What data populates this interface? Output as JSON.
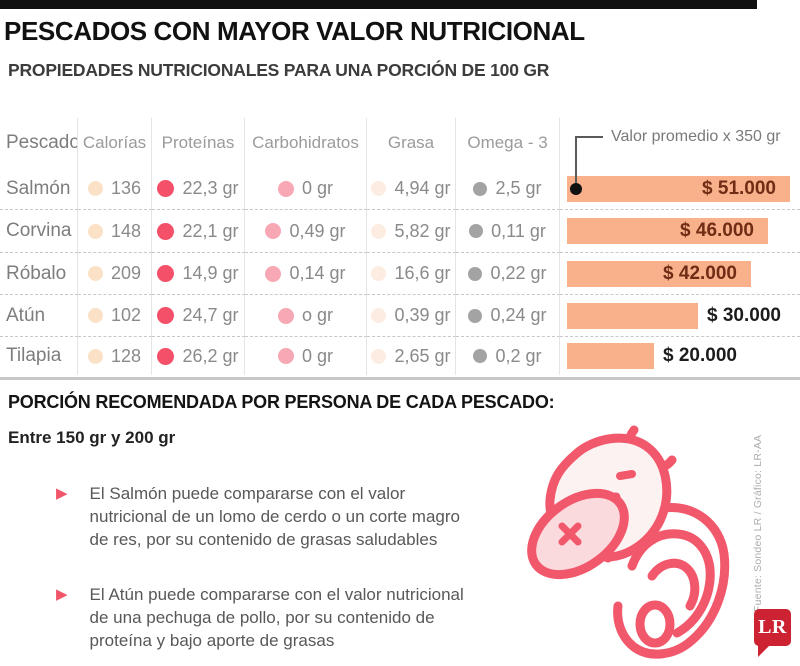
{
  "header": {
    "title": "PESCADOS CON MAYOR VALOR NUTRICIONAL",
    "subtitle": "PROPIEDADES NUTRICIONALES PARA UNA PORCIÓN DE 100 GR"
  },
  "table": {
    "columns": {
      "pescado": "Pescado",
      "calorias": "Calorías",
      "proteinas": "Proteínas",
      "carbohidratos": "Carbohidratos",
      "grasa": "Grasa",
      "omega": "Omega - 3"
    },
    "bar_label": "Valor promedio x 350 gr",
    "rows": [
      {
        "name": "Salmón",
        "calorias": "136",
        "proteinas": "22,3 gr",
        "carbohidratos": "0 gr",
        "grasa": "4,94 gr",
        "omega": "2,5 gr",
        "precio_text": "$ 51.000",
        "precio": 51000
      },
      {
        "name": "Corvina",
        "calorias": "148",
        "proteinas": "22,1 gr",
        "carbohidratos": "0,49 gr",
        "grasa": "5,82 gr",
        "omega": "0,11 gr",
        "precio_text": "$ 46.000",
        "precio": 46000
      },
      {
        "name": "Róbalo",
        "calorias": "209",
        "proteinas": "14,9 gr",
        "carbohidratos": "0,14 gr",
        "grasa": "16,6 gr",
        "omega": "0,22 gr",
        "precio_text": "$ 42.000",
        "precio": 42000
      },
      {
        "name": "Atún",
        "calorias": "102",
        "proteinas": "24,7 gr",
        "carbohidratos": "o gr",
        "grasa": "0,39 gr",
        "omega": "0,24 gr",
        "precio_text": "$ 30.000",
        "precio": 30000
      },
      {
        "name": "Tilapia",
        "calorias": "128",
        "proteinas": "26,2 gr",
        "carbohidratos": "0 gr",
        "grasa": "2,65 gr",
        "omega": "0,2 gr",
        "precio_text": "$ 20.000",
        "precio": 20000
      }
    ]
  },
  "recommendation": {
    "heading": "PORCIÓN RECOMENDADA POR PERSONA DE CADA PESCADO:",
    "range": "Entre 150 gr y 200 gr",
    "bullets": [
      "El Salmón puede compararse con el valor nutricional de un lomo de cerdo o un corte magro de res, por su contenido de grasas saludables",
      "El Atún puede compararse con el valor nutricional de una pechuga de pollo, por su contenido de proteína y bajo aporte de grasas"
    ],
    "bullet_marker": "▶"
  },
  "credits": {
    "source_line": "Fuente: Sondeo LR / Gráfico: LR-AA",
    "logo_text": "LR"
  },
  "colors": {
    "topbar": "#101010",
    "dot_calorias": "#fbe2c6",
    "dot_proteinas": "#f4506a",
    "dot_carbohidratos": "#f7a8b4",
    "dot_grasa": "#fcece2",
    "dot_omega": "#a3a3a3",
    "bar": "#f9b18c",
    "price_inside": "#702c15",
    "price_outside": "#1c1c1c",
    "bullet_marker": "#f2566b",
    "fish_stroke": "#f2586c",
    "logo_red": "#cd2232"
  },
  "chart_data": {
    "type": "table",
    "title": "PESCADOS CON MAYOR VALOR NUTRICIONAL",
    "subtitle": "PROPIEDADES NUTRICIONALES PARA UNA PORCIÓN DE 100 GR",
    "columns": [
      "Pescado",
      "Calorías",
      "Proteínas",
      "Carbohidratos",
      "Grasa",
      "Omega - 3",
      "Valor promedio x 350 gr"
    ],
    "rows": [
      [
        "Salmón",
        136,
        "22,3 gr",
        "0 gr",
        "4,94 gr",
        "2,5 gr",
        "$ 51.000"
      ],
      [
        "Corvina",
        148,
        "22,1 gr",
        "0,49 gr",
        "5,82 gr",
        "0,11 gr",
        "$ 46.000"
      ],
      [
        "Róbalo",
        209,
        "14,9 gr",
        "0,14 gr",
        "16,6 gr",
        "0,22 gr",
        "$ 42.000"
      ],
      [
        "Atún",
        102,
        "24,7 gr",
        "o gr",
        "0,39 gr",
        "0,24 gr",
        "$ 30.000"
      ],
      [
        "Tilapia",
        128,
        "26,2 gr",
        "0 gr",
        "2,65 gr",
        "0,2 gr",
        "$ 20.000"
      ]
    ],
    "bar_series": {
      "name": "Valor promedio x 350 gr",
      "categories": [
        "Salmón",
        "Corvina",
        "Róbalo",
        "Atún",
        "Tilapia"
      ],
      "values": [
        51000,
        46000,
        42000,
        30000,
        20000
      ],
      "unit": "COP $",
      "xlim": [
        0,
        51000
      ],
      "orientation": "horizontal",
      "color": "#f9b18c"
    }
  }
}
